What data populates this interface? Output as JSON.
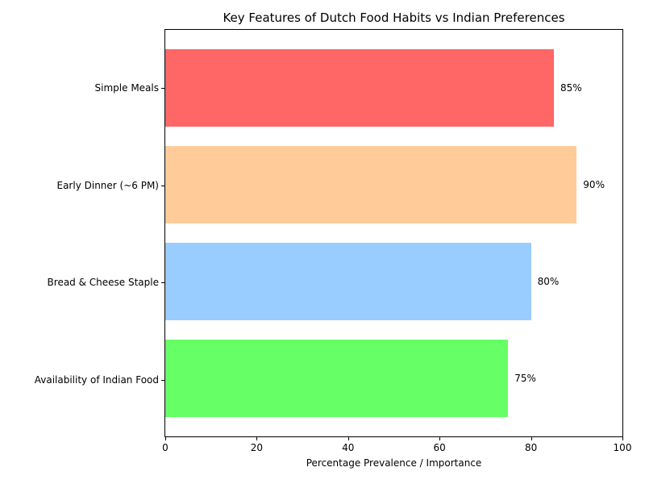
{
  "chart_data": {
    "type": "bar",
    "orientation": "horizontal",
    "title": "Key Features of Dutch Food Habits vs Indian Preferences",
    "xlabel": "Percentage Prevalence / Importance",
    "ylabel": "",
    "categories": [
      "Simple Meals",
      "Early Dinner (~6 PM)",
      "Bread & Cheese Staple",
      "Availability of Indian Food"
    ],
    "values": [
      85,
      90,
      80,
      75
    ],
    "value_labels": [
      "85%",
      "90%",
      "80%",
      "75%"
    ],
    "bar_colors": [
      "#ff6666",
      "#ffcc99",
      "#99ccff",
      "#66ff66"
    ],
    "xlim": [
      0,
      100
    ],
    "x_ticks": [
      "0",
      "20",
      "40",
      "60",
      "80",
      "100"
    ],
    "grid": false,
    "legend_position": "none",
    "background_color": "#ffffff",
    "spine_color": "#000000",
    "text_color": "#000000"
  }
}
